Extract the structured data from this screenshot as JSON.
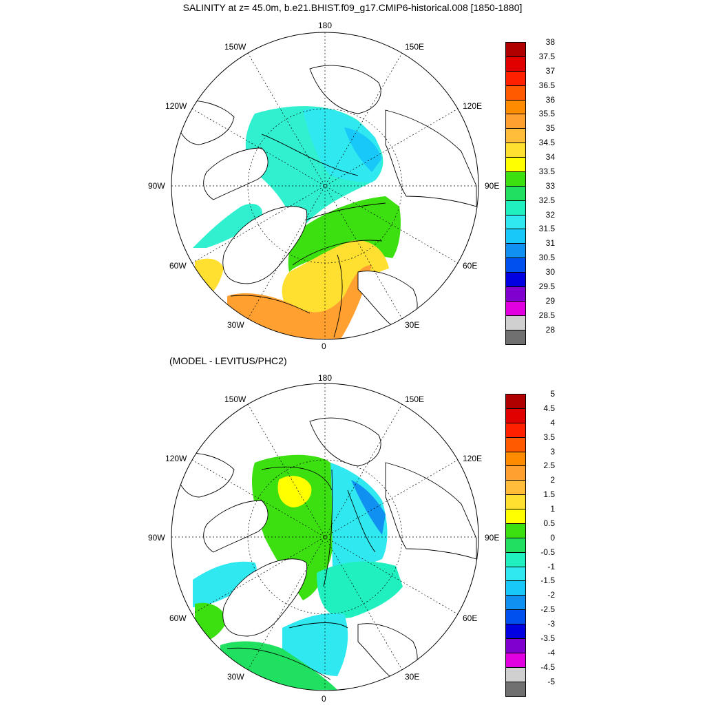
{
  "title": "SALINITY at z=  45.0m, b.e21.BHIST.f09_g17.CMIP6-historical.008 [1850-1880]",
  "subtitle": "(MODEL - LEVITUS/PHC2)",
  "longitude_labels": {
    "top": "180",
    "bottom": "0",
    "w150": "150W",
    "e150": "150E",
    "w120": "120W",
    "e120": "120E",
    "w90": "90W",
    "e90": "90E",
    "w60": "60W",
    "e60": "60E",
    "w30": "30W",
    "e30": "30E"
  },
  "top_colorbar": {
    "labels": [
      "38",
      "37.5",
      "37",
      "36.5",
      "36",
      "35.5",
      "35",
      "34.5",
      "34",
      "33.5",
      "33",
      "32.5",
      "32",
      "31.5",
      "31",
      "30.5",
      "30",
      "29.5",
      "29",
      "28.5",
      "28"
    ]
  },
  "bottom_colorbar": {
    "labels": [
      "5",
      "4.5",
      "4",
      "3.5",
      "3",
      "2.5",
      "2",
      "1.5",
      "1",
      "0.5",
      "0",
      "-0.5",
      "-1",
      "-1.5",
      "-2",
      "-2.5",
      "-3",
      "-3.5",
      "-4",
      "-4.5",
      "-5"
    ]
  },
  "palette": [
    "#b00000",
    "#e00000",
    "#ff2000",
    "#ff5a00",
    "#ff8c00",
    "#ffa030",
    "#ffbd3a",
    "#ffe030",
    "#ffff00",
    "#3ce010",
    "#20e060",
    "#20f0c0",
    "#30e8f0",
    "#18c8f8",
    "#1090f0",
    "#0050f0",
    "#0000e0",
    "#8000d0",
    "#e000e0",
    "#d0d0d0",
    "#707070"
  ]
}
